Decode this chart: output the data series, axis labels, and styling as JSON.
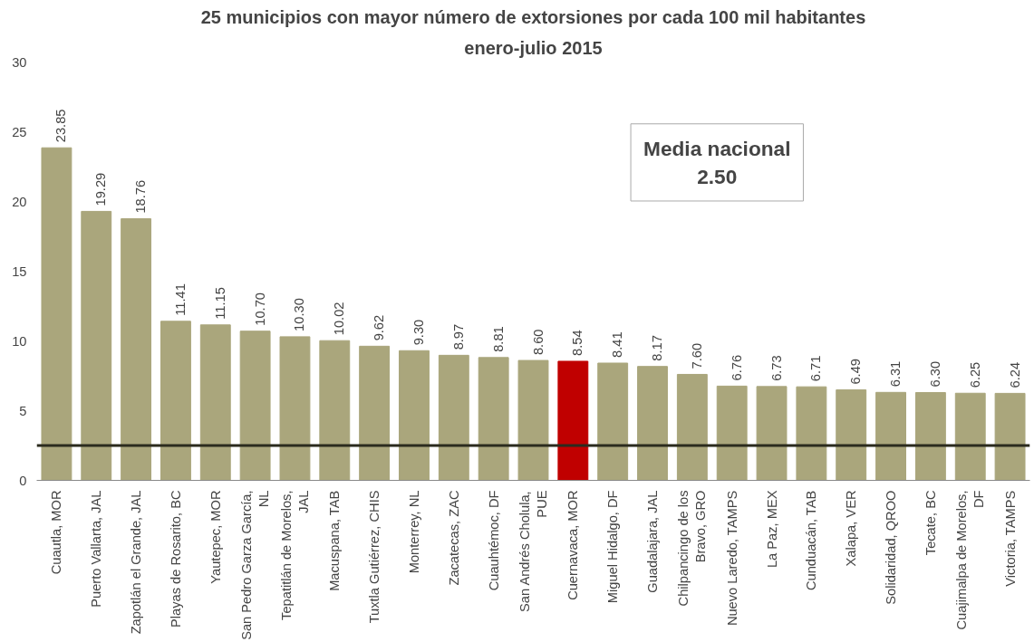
{
  "chart_data": {
    "type": "bar",
    "title": "25 municipios con mayor número de extorsiones por cada 100 mil habitantes",
    "subtitle": "enero-julio 2015",
    "categories": [
      "Cuautla, MOR",
      "Puerto Vallarta, JAL",
      "Zapotlán el Grande, JAL",
      "Playas de Rosarito, BC",
      "Yautepec, MOR",
      "San Pedro Garza García,\nNL",
      "Tepatitlán de Morelos,\nJAL",
      "Macuspana, TAB",
      "Tuxtla Gutiérrez, CHIS",
      "Monterrey, NL",
      "Zacatecas, ZAC",
      "Cuauhtémoc, DF",
      "San Andrés Cholula,\nPUE",
      "Cuernavaca, MOR",
      "Miguel Hidalgo, DF",
      "Guadalajara, JAL",
      "Chilpancingo de los\nBravo, GRO",
      "Nuevo Laredo, TAMPS",
      "La Paz, MEX",
      "Cunduacán, TAB",
      "Xalapa, VER",
      "Solidaridad, QROO",
      "Tecate, BC",
      "Cuajimalpa de Morelos,\nDF",
      "Victoria, TAMPS"
    ],
    "values": [
      23.85,
      19.29,
      18.76,
      11.41,
      11.15,
      10.7,
      10.3,
      10.02,
      9.62,
      9.3,
      8.97,
      8.81,
      8.6,
      8.54,
      8.41,
      8.17,
      7.6,
      6.76,
      6.73,
      6.71,
      6.49,
      6.31,
      6.3,
      6.25,
      6.24
    ],
    "value_labels": [
      "23.85",
      "19.29",
      "18.76",
      "11.41",
      "11.15",
      "10.70",
      "10.30",
      "10.02",
      "9.62",
      "9.30",
      "8.97",
      "8.81",
      "8.60",
      "8.54",
      "8.41",
      "8.17",
      "7.60",
      "6.76",
      "6.73",
      "6.71",
      "6.49",
      "6.31",
      "6.30",
      "6.25",
      "6.24"
    ],
    "colors": [
      "#aaa67c",
      "#aaa67c",
      "#aaa67c",
      "#aaa67c",
      "#aaa67c",
      "#aaa67c",
      "#aaa67c",
      "#aaa67c",
      "#aaa67c",
      "#aaa67c",
      "#aaa67c",
      "#aaa67c",
      "#aaa67c",
      "#c00000",
      "#aaa67c",
      "#aaa67c",
      "#aaa67c",
      "#aaa67c",
      "#aaa67c",
      "#aaa67c",
      "#aaa67c",
      "#aaa67c",
      "#aaa67c",
      "#aaa67c",
      "#aaa67c"
    ],
    "ylim": [
      0,
      30
    ],
    "yticks": [
      0,
      5,
      10,
      15,
      20,
      25,
      30
    ],
    "grid": false,
    "ref_lines": [
      {
        "axis": "y",
        "value": 2.5,
        "label": "Media nacional\n2.50",
        "color": "#2b2b1e"
      }
    ]
  }
}
